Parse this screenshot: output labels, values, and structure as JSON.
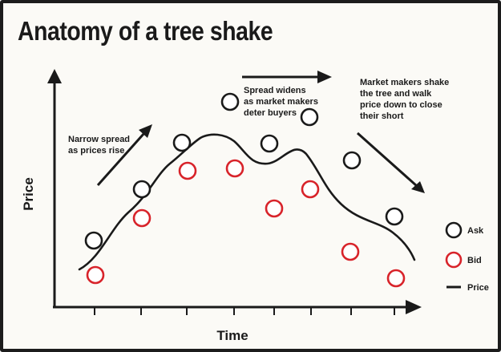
{
  "title": "Anatomy of a tree shake",
  "axes": {
    "x_label": "Time",
    "y_label": "Price"
  },
  "annotations": {
    "narrow_spread": [
      "Narrow spread",
      "as prices rise"
    ],
    "spread_widens": [
      "Spread widens",
      "as market makers",
      "deter buyers"
    ],
    "market_makers_shake": [
      "Market makers shake",
      "the tree and walk",
      "price down to close",
      "their short"
    ]
  },
  "legend": {
    "ask": "Ask",
    "bid": "Bid",
    "price": "Price"
  },
  "colors": {
    "ask": "#1a1a1a",
    "bid": "#d8232a",
    "line": "#1a1a1a",
    "background": "#fbfaf6"
  }
}
